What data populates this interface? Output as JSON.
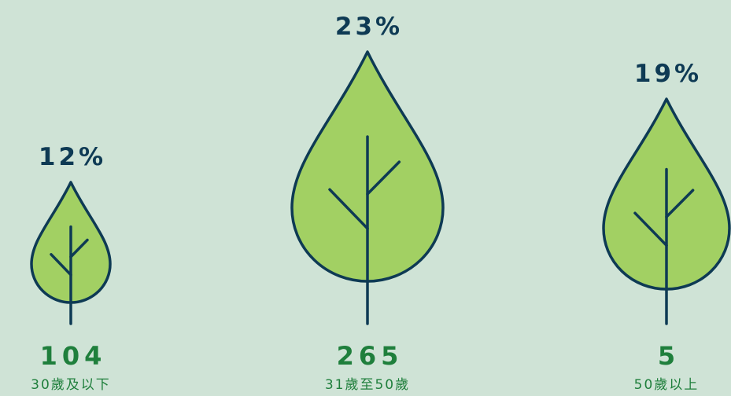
{
  "items": [
    {
      "percent": "12%",
      "count": "104",
      "label": "30歲及以下"
    },
    {
      "percent": "23%",
      "count": "265",
      "label": "31歲至50歲"
    },
    {
      "percent": "19%",
      "count": "5",
      "label": "50歲以上"
    }
  ]
}
